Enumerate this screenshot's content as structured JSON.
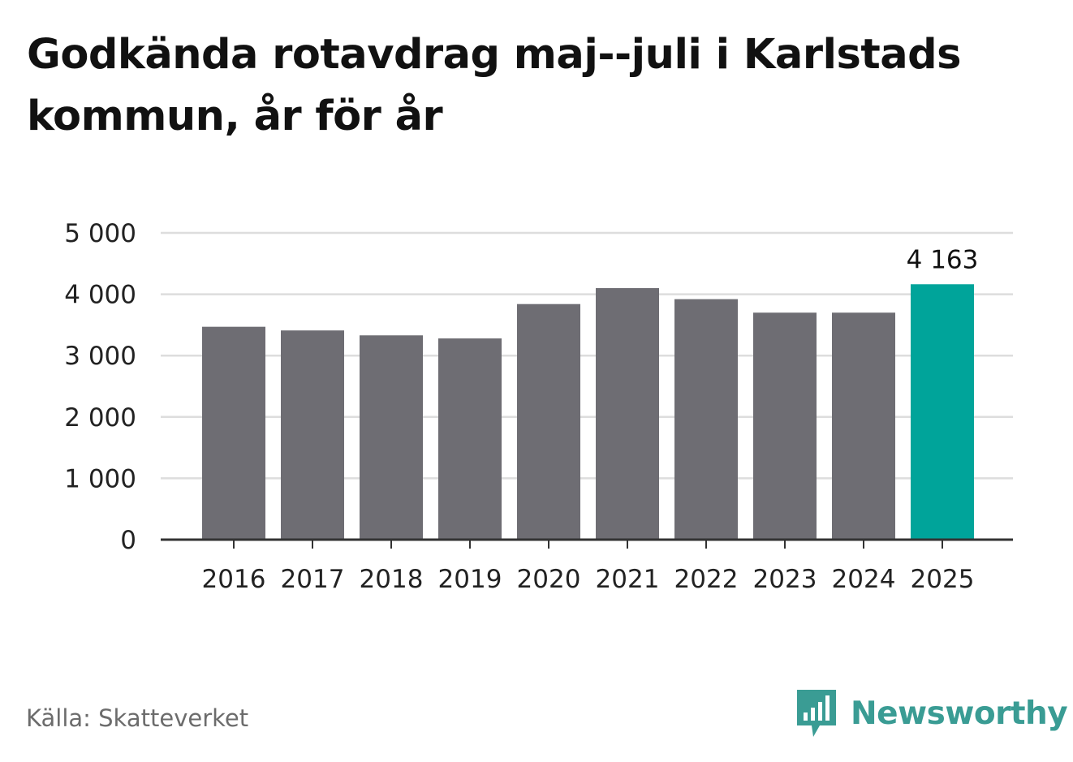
{
  "title": "Godkända rotavdrag maj--juli i Karlstads kommun, år för år",
  "source": "Källa: Skatteverket",
  "brand": {
    "name": "Newsworthy",
    "icon": "newsworthy-logo-icon"
  },
  "colors": {
    "bar": "#6e6d73",
    "highlight": "#00a49a",
    "grid": "#dddddd",
    "axis": "#333333",
    "brand": "#3a9c94"
  },
  "chart_data": {
    "type": "bar",
    "title": "Godkända rotavdrag maj--juli i Karlstads kommun, år för år",
    "categories": [
      "2016",
      "2017",
      "2018",
      "2019",
      "2020",
      "2021",
      "2022",
      "2023",
      "2024",
      "2025"
    ],
    "values": [
      3470,
      3410,
      3330,
      3280,
      3840,
      4100,
      3920,
      3700,
      3700,
      4163
    ],
    "highlight_index": 9,
    "data_labels": [
      {
        "index": 9,
        "text": "4 163"
      }
    ],
    "ylim": [
      0,
      5000
    ],
    "yticks": [
      0,
      1000,
      2000,
      3000,
      4000,
      5000
    ],
    "ytick_labels": [
      "0",
      "1 000",
      "2 000",
      "3 000",
      "4 000",
      "5 000"
    ],
    "grid": true,
    "xlabel": "",
    "ylabel": ""
  }
}
